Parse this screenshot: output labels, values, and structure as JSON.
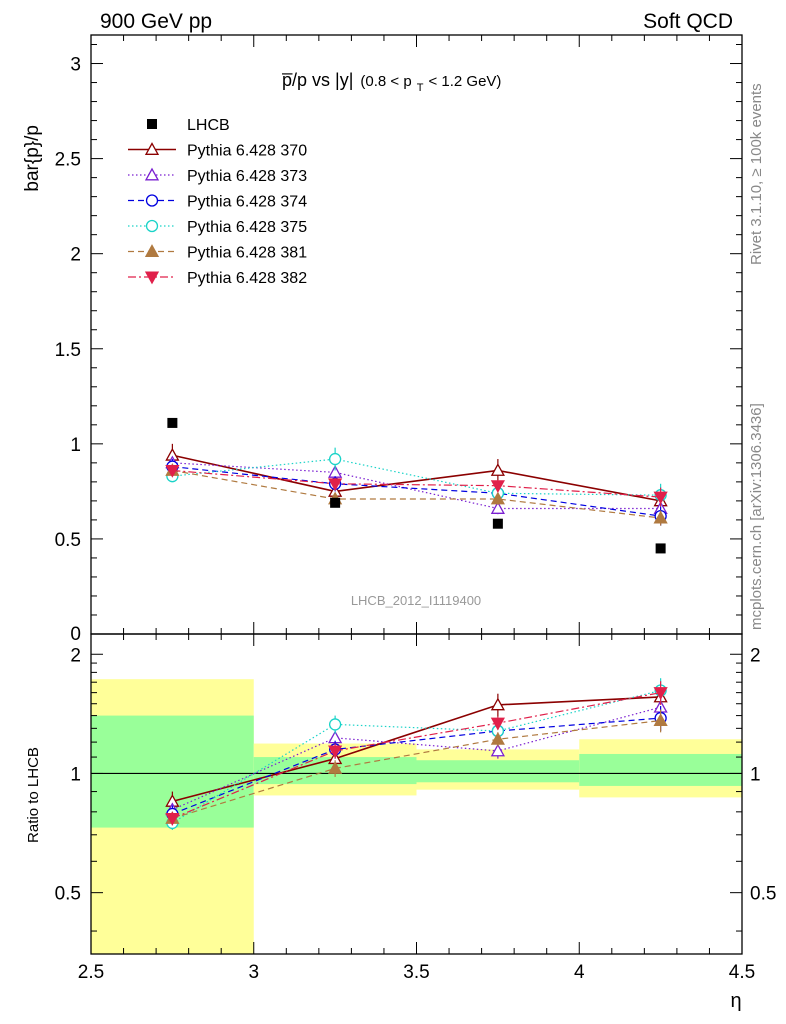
{
  "header": {
    "left": "900 GeV pp",
    "right": "Soft QCD"
  },
  "side_texts": {
    "upper": "Rivet 3.1.10, ≥ 100k events",
    "lower": "mcplots.cern.ch [arXiv:1306.3436]"
  },
  "chart_data": [
    {
      "type": "line",
      "title_main": "p̅/p vs |y|",
      "title_sub": "(0.8 < p",
      "title_sub_sub": "T",
      "title_sub_end": " < 1.2 GeV)",
      "ylabel": "bar{p}/p",
      "watermark": "LHCB_2012_I1119400",
      "xlim": [
        2.5,
        4.5
      ],
      "ylim": [
        0,
        3.15
      ],
      "yticks": [
        0.5,
        1,
        1.5,
        2,
        2.5,
        3
      ],
      "ytick_labels": [
        "0.5",
        "1",
        "1.5",
        "2",
        "2.5",
        "3"
      ],
      "y_zero_label": "0",
      "x": [
        2.75,
        3.25,
        3.75,
        4.25
      ],
      "legend_position": "top-left",
      "data": {
        "name": "LHCB",
        "color": "#000000",
        "values": [
          1.11,
          0.69,
          0.58,
          0.45
        ]
      },
      "series": [
        {
          "name": "Pythia 6.428 370",
          "color": "#8b0000",
          "marker": "triangle-up-open",
          "dash": "",
          "width": 1.6,
          "values": [
            0.94,
            0.75,
            0.86,
            0.7
          ],
          "errors": [
            0.06,
            0.05,
            0.06,
            0.05
          ]
        },
        {
          "name": "Pythia 6.428 373",
          "color": "#7a1fd1",
          "marker": "triangle-up-open",
          "dash": "1.5,2.5",
          "width": 1.2,
          "values": [
            0.9,
            0.85,
            0.66,
            0.66
          ],
          "errors": [
            0.03,
            0.03,
            0.03,
            0.05
          ]
        },
        {
          "name": "Pythia 6.428 374",
          "color": "#0000e0",
          "marker": "circle-open",
          "dash": "6,4",
          "width": 1.2,
          "values": [
            0.88,
            0.79,
            0.74,
            0.62
          ],
          "errors": [
            0.04,
            0.04,
            0.04,
            0.05
          ]
        },
        {
          "name": "Pythia 6.428 375",
          "color": "#1ad3c8",
          "marker": "circle-open",
          "dash": "1.5,2.5",
          "width": 1.2,
          "values": [
            0.83,
            0.92,
            0.74,
            0.73
          ],
          "errors": [
            0.03,
            0.06,
            0.03,
            0.06
          ]
        },
        {
          "name": "Pythia 6.428 381",
          "color": "#b07a40",
          "marker": "triangle-up-filled",
          "dash": "6,4",
          "width": 1.2,
          "values": [
            0.86,
            0.71,
            0.71,
            0.61
          ],
          "errors": [
            0.03,
            0.03,
            0.03,
            0.04
          ]
        },
        {
          "name": "Pythia 6.428 382",
          "color": "#e0204a",
          "marker": "triangle-down-filled",
          "dash": "8,3,2,3",
          "width": 1.2,
          "values": [
            0.86,
            0.79,
            0.78,
            0.72
          ],
          "errors": [
            0.03,
            0.03,
            0.03,
            0.05
          ]
        }
      ]
    },
    {
      "type": "line",
      "ylabel": "Ratio to LHCB",
      "xlabel": "η",
      "xlim": [
        2.5,
        4.5
      ],
      "ylim": [
        0.35,
        2.25
      ],
      "log_scale_y": true,
      "yticks": [
        0.5,
        1,
        2
      ],
      "ytick_labels": [
        "0.5",
        "1",
        "2"
      ],
      "xticks": [
        2.5,
        3,
        3.5,
        4,
        4.5
      ],
      "xtick_labels": [
        "2.5",
        "3",
        "3.5",
        "4",
        "4.5"
      ],
      "reference_line": 1,
      "uncertainty_bands": [
        {
          "x_range": [
            2.5,
            3.0
          ],
          "inner": [
            0.73,
            1.4
          ],
          "outer": [
            0.35,
            1.73
          ]
        },
        {
          "x_range": [
            3.0,
            3.5
          ],
          "inner": [
            0.94,
            1.1
          ],
          "outer": [
            0.88,
            1.19
          ]
        },
        {
          "x_range": [
            3.5,
            4.0
          ],
          "inner": [
            0.95,
            1.08
          ],
          "outer": [
            0.91,
            1.15
          ]
        },
        {
          "x_range": [
            4.0,
            4.5
          ],
          "inner": [
            0.93,
            1.12
          ],
          "outer": [
            0.87,
            1.22
          ]
        }
      ],
      "band_colors": {
        "inner": "#99ff99",
        "outer": "#ffff99"
      },
      "x": [
        2.75,
        3.25,
        3.75,
        4.25
      ],
      "series": [
        {
          "name": "Pythia 6.428 370",
          "values": [
            0.85,
            1.09,
            1.49,
            1.56
          ],
          "errors": [
            0.05,
            0.07,
            0.1,
            0.1
          ]
        },
        {
          "name": "Pythia 6.428 373",
          "values": [
            0.81,
            1.23,
            1.14,
            1.47
          ],
          "errors": [
            0.03,
            0.05,
            0.05,
            0.1
          ]
        },
        {
          "name": "Pythia 6.428 374",
          "values": [
            0.79,
            1.15,
            1.28,
            1.38
          ],
          "errors": [
            0.04,
            0.06,
            0.06,
            0.1
          ]
        },
        {
          "name": "Pythia 6.428 375",
          "values": [
            0.75,
            1.33,
            1.28,
            1.62
          ],
          "errors": [
            0.03,
            0.07,
            0.05,
            0.12
          ]
        },
        {
          "name": "Pythia 6.428 381",
          "values": [
            0.77,
            1.03,
            1.22,
            1.36
          ],
          "errors": [
            0.03,
            0.05,
            0.05,
            0.09
          ]
        },
        {
          "name": "Pythia 6.428 382",
          "values": [
            0.77,
            1.14,
            1.34,
            1.6
          ],
          "errors": [
            0.03,
            0.05,
            0.05,
            0.11
          ]
        }
      ]
    }
  ]
}
